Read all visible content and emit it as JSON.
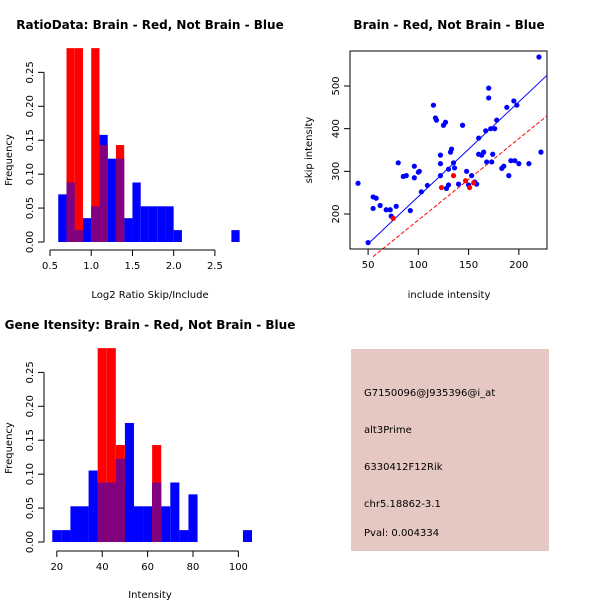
{
  "colors": {
    "red": "#ff0000",
    "blue": "#0000ff",
    "overlap": "#800080",
    "info_bg": "#e6c8c2",
    "pval": "#8b0000"
  },
  "chart_data": [
    {
      "id": "ratio-hist",
      "type": "bar",
      "title": "RatioData: Brain - Red, Not Brain - Blue",
      "xlabel": "Log2 Ratio Skip/Include",
      "ylabel": "Frequency",
      "xlim": [
        0.5,
        2.95
      ],
      "ylim": [
        0,
        0.28
      ],
      "xticks": [
        0.5,
        1.0,
        1.5,
        2.0,
        2.5
      ],
      "xtick_labels": [
        "0.5",
        "1.0",
        "1.5",
        "2.0",
        "2.5"
      ],
      "yticks": [
        0.0,
        0.05,
        0.1,
        0.15,
        0.2,
        0.25
      ],
      "ytick_labels": [
        "0.00",
        "0.05",
        "0.10",
        "0.15",
        "0.20",
        "0.25"
      ],
      "bin_width": 0.1,
      "series": [
        {
          "name": "Brain",
          "color": "red",
          "bins": [
            [
              0.7,
              0.2857
            ],
            [
              0.8,
              0.2857
            ],
            [
              1.0,
              0.2857
            ],
            [
              1.1,
              0.1429
            ],
            [
              1.3,
              0.1429
            ]
          ]
        },
        {
          "name": "Not Brain",
          "color": "blue",
          "bins": [
            [
              0.6,
              0.0702
            ],
            [
              0.7,
              0.0877
            ],
            [
              0.8,
              0.0175
            ],
            [
              0.9,
              0.0351
            ],
            [
              1.0,
              0.0526
            ],
            [
              1.1,
              0.1579
            ],
            [
              1.2,
              0.1228
            ],
            [
              1.3,
              0.1228
            ],
            [
              1.4,
              0.0351
            ],
            [
              1.5,
              0.0877
            ],
            [
              1.6,
              0.0526
            ],
            [
              1.7,
              0.0526
            ],
            [
              1.8,
              0.0526
            ],
            [
              1.9,
              0.0526
            ],
            [
              2.0,
              0.0175
            ],
            [
              2.7,
              0.0175
            ]
          ]
        }
      ]
    },
    {
      "id": "intensity-scatter",
      "type": "scatter",
      "title": "Brain - Red, Not Brain - Blue",
      "xlabel": "include intensity",
      "ylabel": "skip intensity",
      "xlim": [
        32,
        228
      ],
      "ylim": [
        118,
        582
      ],
      "xticks": [
        50,
        100,
        150,
        200
      ],
      "xtick_labels": [
        "50",
        "100",
        "150",
        "200"
      ],
      "yticks": [
        200,
        300,
        400,
        500
      ],
      "ytick_labels": [
        "200",
        "300",
        "400",
        "500"
      ],
      "series": [
        {
          "name": "Not Brain",
          "color": "blue",
          "points": [
            [
              40,
              272
            ],
            [
              50,
              133
            ],
            [
              55,
              240
            ],
            [
              55,
              213
            ],
            [
              58,
              237
            ],
            [
              62,
              220
            ],
            [
              68,
              210
            ],
            [
              72,
              210
            ],
            [
              73,
              195
            ],
            [
              78,
              218
            ],
            [
              80,
              320
            ],
            [
              85,
              288
            ],
            [
              88,
              290
            ],
            [
              92,
              208
            ],
            [
              96,
              285
            ],
            [
              96,
              312
            ],
            [
              100,
              298
            ],
            [
              101,
              300
            ],
            [
              103,
              252
            ],
            [
              109,
              267
            ],
            [
              115,
              455
            ],
            [
              117,
              425
            ],
            [
              118,
              420
            ],
            [
              122,
              338
            ],
            [
              122,
              318
            ],
            [
              122,
              290
            ],
            [
              125,
              408
            ],
            [
              127,
              415
            ],
            [
              128,
              260
            ],
            [
              130,
              268
            ],
            [
              130,
              305
            ],
            [
              132,
              345
            ],
            [
              133,
              352
            ],
            [
              135,
              320
            ],
            [
              136,
              308
            ],
            [
              140,
              270
            ],
            [
              144,
              408
            ],
            [
              148,
              300
            ],
            [
              150,
              268
            ],
            [
              153,
              290
            ],
            [
              156,
              275
            ],
            [
              158,
              270
            ],
            [
              160,
              378
            ],
            [
              160,
              340
            ],
            [
              163,
              338
            ],
            [
              165,
              345
            ],
            [
              167,
              395
            ],
            [
              168,
              322
            ],
            [
              170,
              495
            ],
            [
              170,
              472
            ],
            [
              172,
              400
            ],
            [
              173,
              322
            ],
            [
              174,
              340
            ],
            [
              176,
              400
            ],
            [
              178,
              420
            ],
            [
              183,
              307
            ],
            [
              185,
              312
            ],
            [
              188,
              450
            ],
            [
              190,
              290
            ],
            [
              192,
              325
            ],
            [
              195,
              465
            ],
            [
              196,
              325
            ],
            [
              198,
              455
            ],
            [
              200,
              318
            ],
            [
              210,
              318
            ],
            [
              220,
              568
            ],
            [
              222,
              345
            ]
          ]
        },
        {
          "name": "Brain",
          "color": "red",
          "points": [
            [
              75,
              190
            ],
            [
              123,
              262
            ],
            [
              135,
              290
            ],
            [
              147,
              278
            ],
            [
              151,
              262
            ],
            [
              155,
              273
            ]
          ]
        }
      ],
      "fit_lines": [
        {
          "name": "Not Brain fit",
          "color": "blue",
          "style": "solid",
          "x": [
            50,
            228
          ],
          "y": [
            130,
            525
          ]
        },
        {
          "name": "Brain fit",
          "color": "red",
          "style": "dashed",
          "x": [
            55,
            228
          ],
          "y": [
            100,
            430
          ]
        }
      ]
    },
    {
      "id": "gene-intensity-hist",
      "type": "bar",
      "title": "Gene Itensity: Brain - Red, Not Brain - Blue",
      "xlabel": "Intensity",
      "ylabel": "Frequency",
      "xlim": [
        17,
        106
      ],
      "ylim": [
        0,
        0.28
      ],
      "xticks": [
        20,
        40,
        60,
        80,
        100
      ],
      "xtick_labels": [
        "20",
        "40",
        "60",
        "80",
        "100"
      ],
      "yticks": [
        0.0,
        0.05,
        0.1,
        0.15,
        0.2,
        0.25
      ],
      "ytick_labels": [
        "0.00",
        "0.05",
        "0.10",
        "0.15",
        "0.20",
        "0.25"
      ],
      "bin_width": 4,
      "series": [
        {
          "name": "Brain",
          "color": "red",
          "bins": [
            [
              38,
              0.2857
            ],
            [
              42,
              0.2857
            ],
            [
              46,
              0.1429
            ],
            [
              62,
              0.1429
            ]
          ]
        },
        {
          "name": "Not Brain",
          "color": "blue",
          "bins": [
            [
              18,
              0.0175
            ],
            [
              22,
              0.0175
            ],
            [
              26,
              0.0526
            ],
            [
              30,
              0.0526
            ],
            [
              34,
              0.1053
            ],
            [
              38,
              0.0877
            ],
            [
              42,
              0.0877
            ],
            [
              46,
              0.1228
            ],
            [
              50,
              0.1754
            ],
            [
              54,
              0.0526
            ],
            [
              58,
              0.0526
            ],
            [
              62,
              0.0877
            ],
            [
              66,
              0.0526
            ],
            [
              70,
              0.0877
            ],
            [
              74,
              0.0175
            ],
            [
              78,
              0.0702
            ],
            [
              102,
              0.0175
            ]
          ]
        }
      ]
    }
  ],
  "info_panel": {
    "probe_id": "G7150096@J935396@i_at",
    "event_type": "alt3Prime",
    "gene": "6330412F12Rik",
    "location": "chr5.18862-3.1",
    "pval": "Pval: 0.004334"
  }
}
